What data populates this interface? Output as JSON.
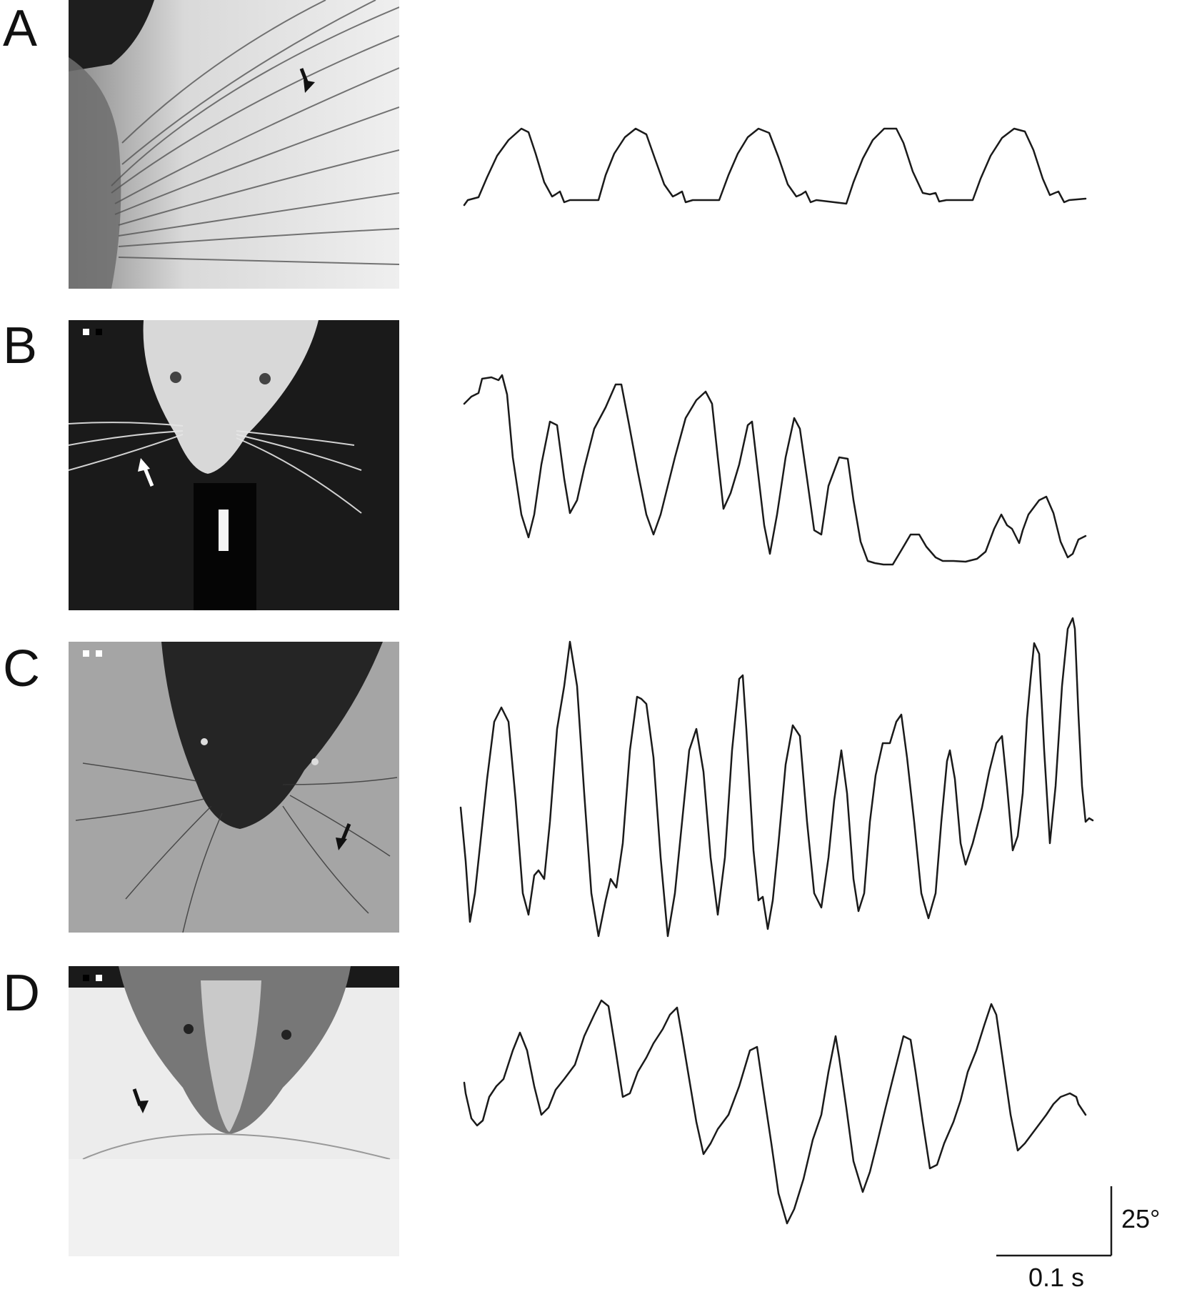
{
  "figure": {
    "panels": [
      {
        "letter": "A",
        "photo": "whisker-closeup-photo",
        "arrow": "dark",
        "trace": "regular-whisking-trace"
      },
      {
        "letter": "B",
        "photo": "albino-rat-head-photo",
        "arrow": "light",
        "trace": "whisking-trace"
      },
      {
        "letter": "C",
        "photo": "dark-rat-head-photo",
        "arrow": "dark",
        "trace": "whisking-trace"
      },
      {
        "letter": "D",
        "photo": "hooded-rat-head-photo",
        "arrow": "dark",
        "trace": "whisking-trace"
      }
    ],
    "scale_bar": {
      "vertical_label": "25°",
      "horizontal_label": "0.1 s"
    }
  },
  "colors": {
    "trace": "#1a1a1a",
    "background": "#ffffff"
  }
}
